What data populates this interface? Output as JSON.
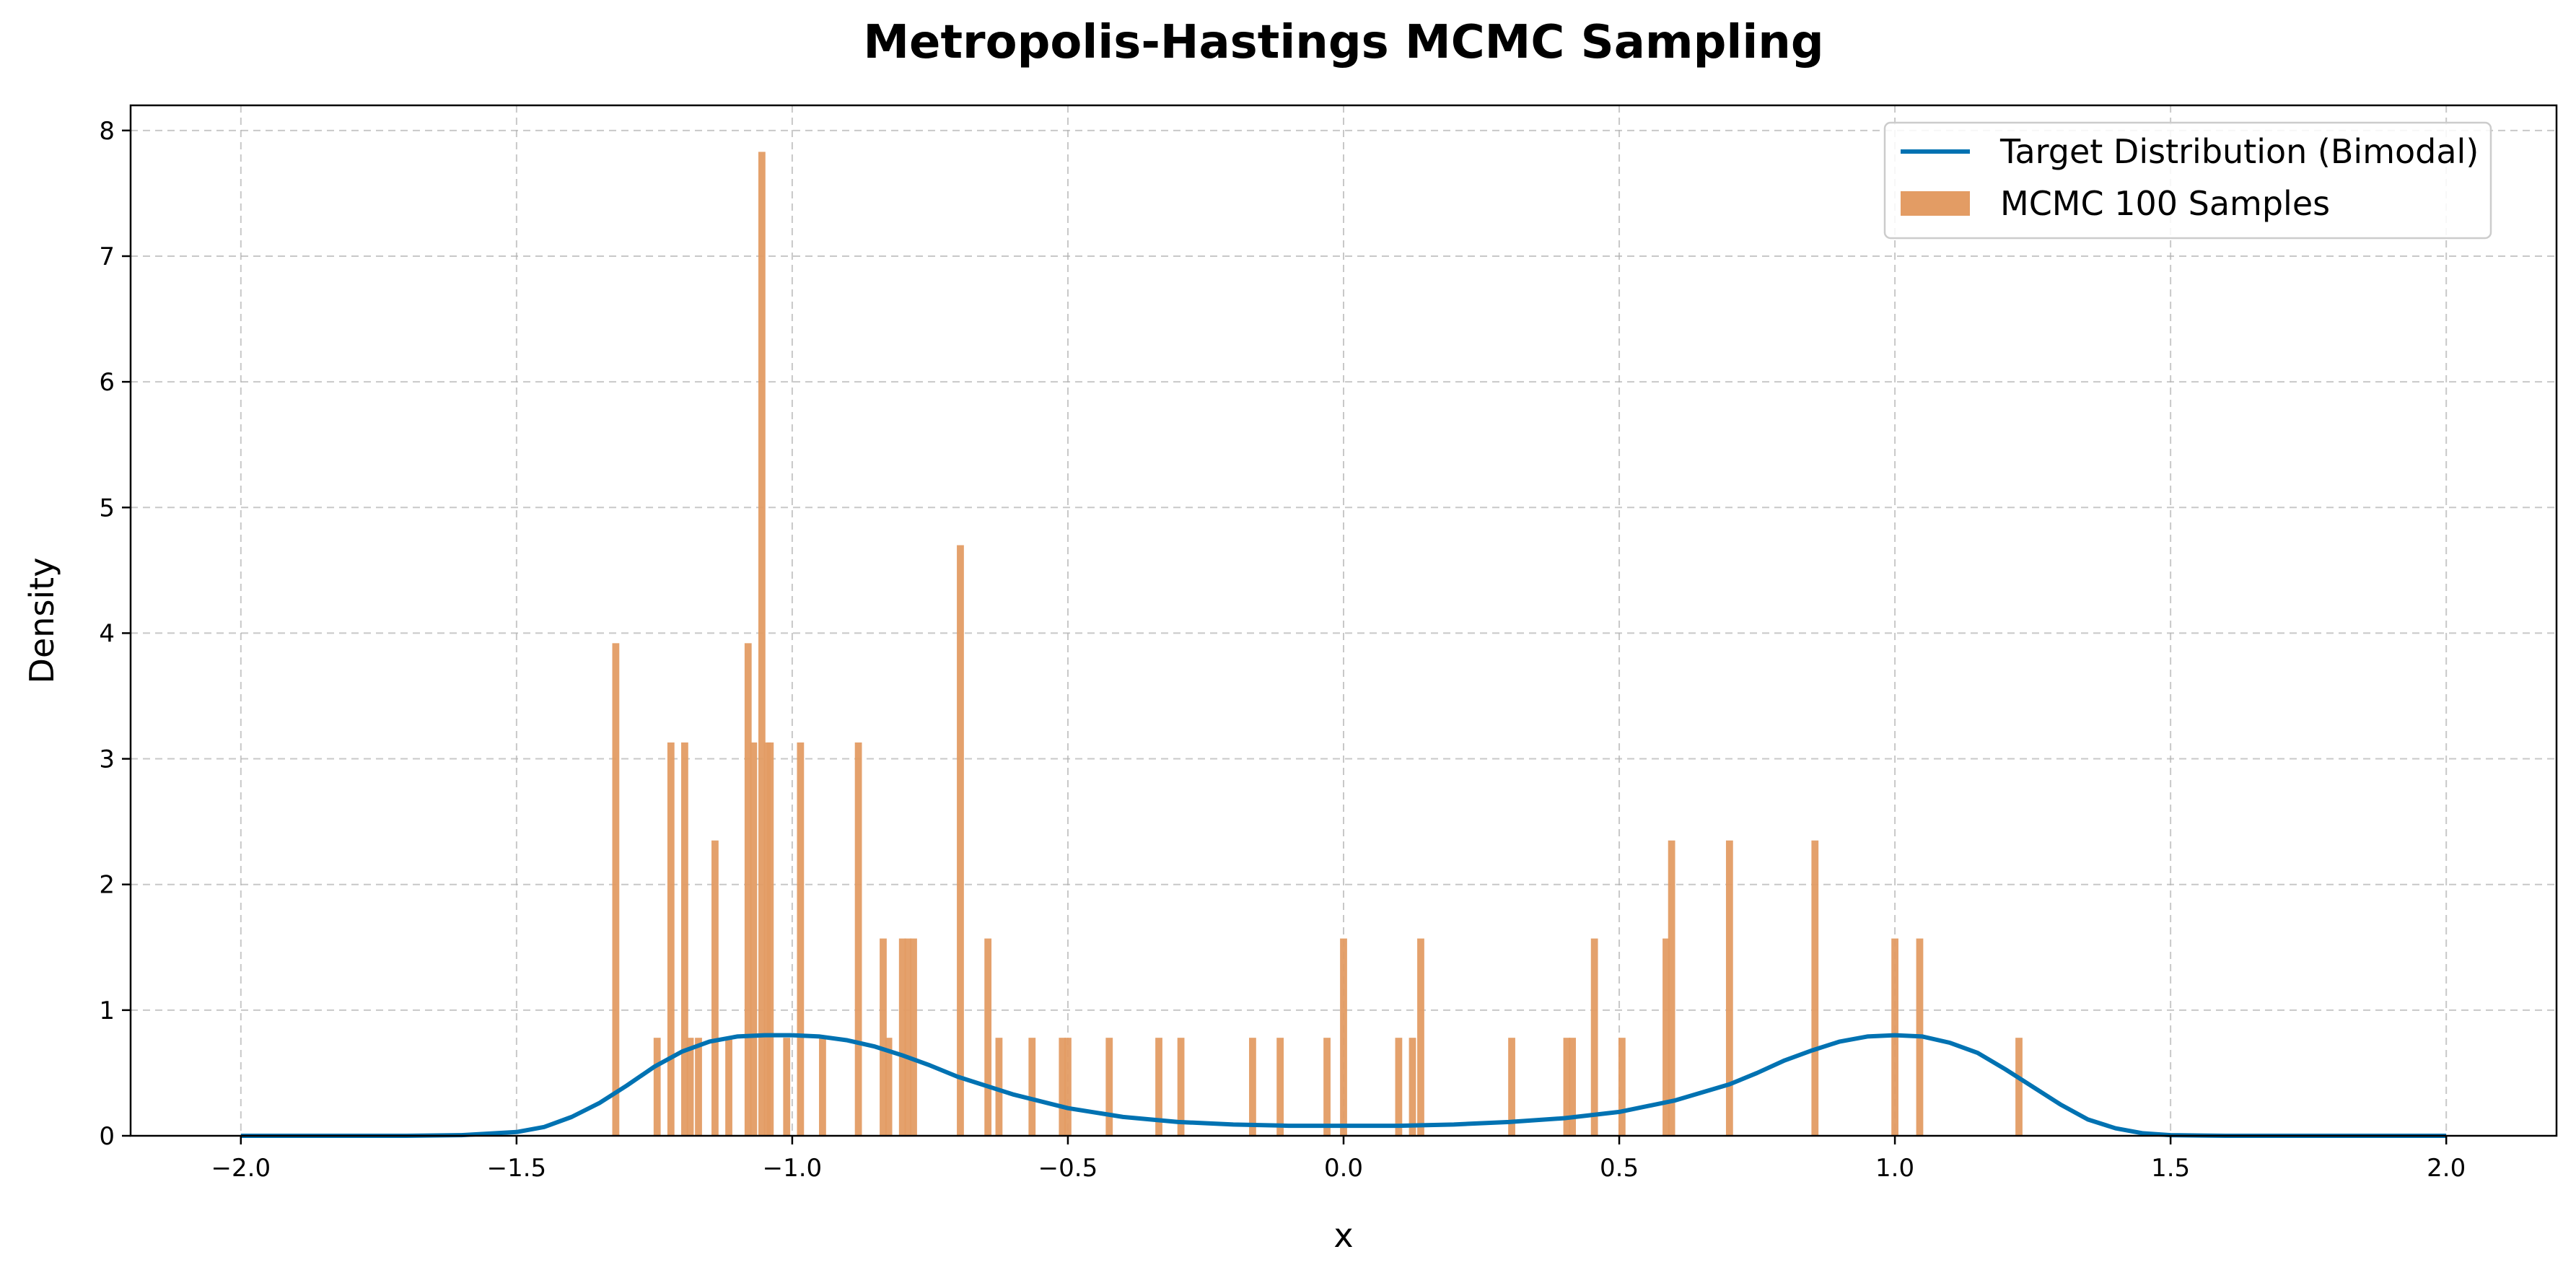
{
  "chart_data": {
    "type": "bar",
    "title": "Metropolis-Hastings MCMC Sampling",
    "xlabel": "x",
    "ylabel": "Density",
    "xlim": [
      -2.2,
      2.2
    ],
    "ylim": [
      0,
      8.2
    ],
    "xticks": [
      -2.0,
      -1.5,
      -1.0,
      -0.5,
      0.0,
      0.5,
      1.0,
      1.5,
      2.0
    ],
    "xtick_labels": [
      "−2.0",
      "−1.5",
      "−1.0",
      "−0.5",
      "0.0",
      "0.5",
      "1.0",
      "1.5",
      "2.0"
    ],
    "yticks": [
      0,
      1,
      2,
      3,
      4,
      5,
      6,
      7,
      8
    ],
    "ytick_labels": [
      "0",
      "1",
      "2",
      "3",
      "4",
      "5",
      "6",
      "7",
      "8"
    ],
    "grid": true,
    "legend_position": "top-right",
    "series": [
      {
        "name": "Target Distribution (Bimodal)",
        "kind": "line",
        "color": "#0072b2",
        "x": [
          -2.0,
          -1.9,
          -1.8,
          -1.7,
          -1.6,
          -1.5,
          -1.45,
          -1.4,
          -1.35,
          -1.3,
          -1.25,
          -1.2,
          -1.15,
          -1.1,
          -1.05,
          -1.0,
          -0.95,
          -0.9,
          -0.85,
          -0.8,
          -0.75,
          -0.7,
          -0.6,
          -0.5,
          -0.4,
          -0.3,
          -0.2,
          -0.1,
          0.0,
          0.1,
          0.2,
          0.3,
          0.4,
          0.5,
          0.6,
          0.7,
          0.75,
          0.8,
          0.85,
          0.9,
          0.95,
          1.0,
          1.05,
          1.1,
          1.15,
          1.2,
          1.25,
          1.3,
          1.35,
          1.4,
          1.45,
          1.5,
          1.6,
          1.7,
          1.8,
          1.9,
          2.0
        ],
        "y": [
          0.0,
          0.0,
          0.0,
          0.0,
          0.005,
          0.03,
          0.07,
          0.15,
          0.26,
          0.4,
          0.55,
          0.67,
          0.75,
          0.79,
          0.8,
          0.8,
          0.79,
          0.76,
          0.71,
          0.64,
          0.56,
          0.47,
          0.33,
          0.22,
          0.15,
          0.11,
          0.09,
          0.08,
          0.08,
          0.08,
          0.09,
          0.11,
          0.14,
          0.19,
          0.28,
          0.41,
          0.5,
          0.6,
          0.68,
          0.75,
          0.79,
          0.8,
          0.79,
          0.74,
          0.66,
          0.53,
          0.39,
          0.25,
          0.13,
          0.06,
          0.02,
          0.005,
          0.0,
          0.0,
          0.0,
          0.0,
          0.0
        ]
      },
      {
        "name": "MCMC 100 Samples",
        "kind": "bar",
        "color": "#e39c64",
        "bin_width": 0.0128,
        "x": [
          -1.32,
          -1.245,
          -1.22,
          -1.195,
          -1.185,
          -1.17,
          -1.14,
          -1.115,
          -1.08,
          -1.07,
          -1.055,
          -1.045,
          -1.04,
          -1.01,
          -0.985,
          -0.945,
          -0.88,
          -0.835,
          -0.825,
          -0.8,
          -0.79,
          -0.78,
          -0.695,
          -0.645,
          -0.625,
          -0.565,
          -0.51,
          -0.5,
          -0.425,
          -0.335,
          -0.295,
          -0.165,
          -0.115,
          -0.03,
          0.0,
          0.1,
          0.125,
          0.14,
          0.305,
          0.405,
          0.415,
          0.455,
          0.505,
          0.585,
          0.595,
          0.7,
          0.855,
          1.0,
          1.045,
          1.225
        ],
        "values": [
          3.92,
          0.78,
          3.13,
          3.13,
          0.78,
          0.78,
          2.35,
          0.78,
          3.92,
          3.13,
          7.83,
          3.13,
          3.13,
          0.78,
          3.13,
          0.78,
          3.13,
          1.57,
          0.78,
          1.57,
          1.57,
          1.57,
          4.7,
          1.57,
          0.78,
          0.78,
          0.78,
          0.78,
          0.78,
          0.78,
          0.78,
          0.78,
          0.78,
          0.78,
          1.57,
          0.78,
          0.78,
          1.57,
          0.78,
          0.78,
          0.78,
          1.57,
          0.78,
          1.57,
          2.35,
          2.35,
          2.35,
          1.57,
          1.57,
          0.78
        ]
      }
    ]
  }
}
